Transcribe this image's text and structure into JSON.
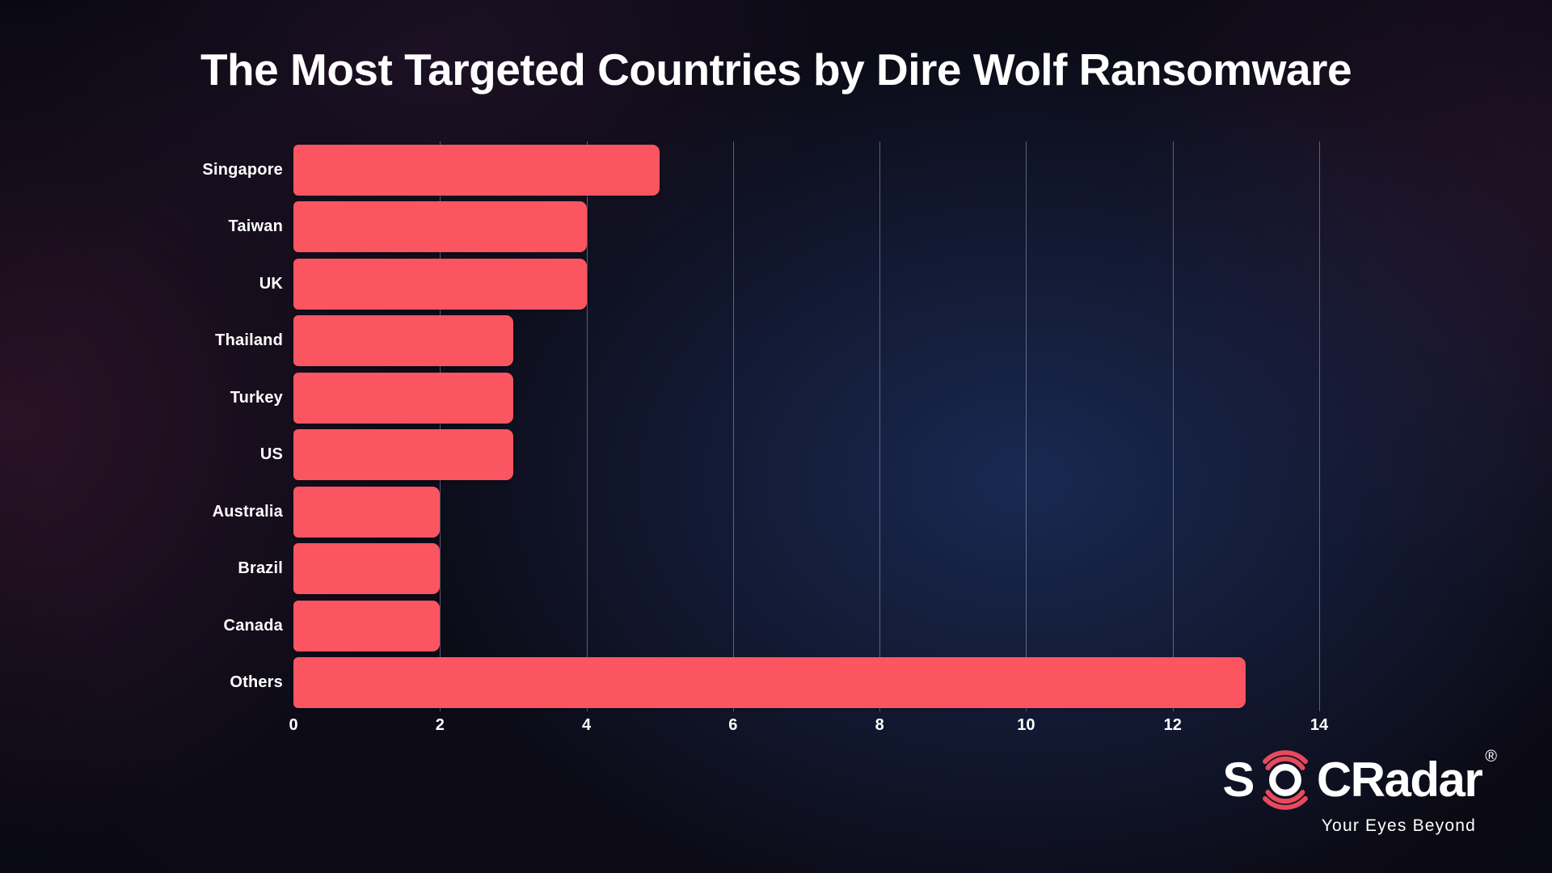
{
  "title": "The Most Targeted Countries by Dire Wolf Ransomware",
  "chart_data": {
    "type": "bar",
    "orientation": "horizontal",
    "title": "The Most Targeted Countries by Dire Wolf Ransomware",
    "categories": [
      "Singapore",
      "Taiwan",
      "UK",
      "Thailand",
      "Turkey",
      "US",
      "Australia",
      "Brazil",
      "Canada",
      "Others"
    ],
    "values": [
      5,
      4,
      4,
      3,
      3,
      3,
      2,
      2,
      2,
      13
    ],
    "xlabel": "",
    "ylabel": "",
    "xlim": [
      0,
      14
    ],
    "x_ticks": [
      0,
      2,
      4,
      6,
      8,
      10,
      12,
      14
    ],
    "grid": true,
    "legend": false,
    "bar_color": "#fa5560",
    "gridline_color": "rgba(168,178,202,0.5)"
  },
  "logo": {
    "brand_prefix": "S",
    "brand_suffix": "CRadar",
    "registered_mark": "®",
    "tagline": "Your Eyes Beyond",
    "accent_color": "#e8495c",
    "text_color": "#ffffff"
  },
  "colors": {
    "background_base": "#0c0b16",
    "title_text": "#ffffff"
  }
}
